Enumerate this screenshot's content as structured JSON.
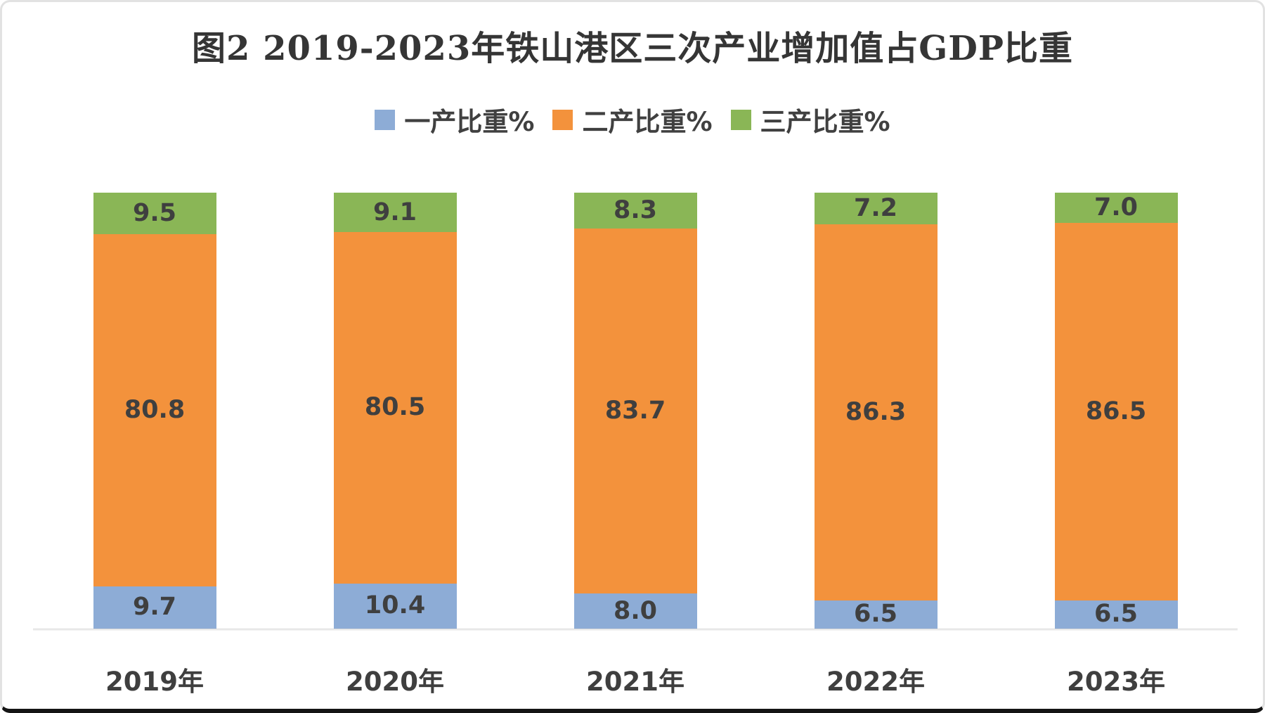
{
  "chart_data": {
    "type": "bar",
    "subtype": "stacked-column",
    "title": "图2 2019-2023年铁山港区三次产业增加值占GDP比重",
    "categories": [
      "2019年",
      "2020年",
      "2021年",
      "2022年",
      "2023年"
    ],
    "series": [
      {
        "name": "一产比重%",
        "color": "#8DACD6",
        "values": [
          9.7,
          10.4,
          8.0,
          6.5,
          6.5
        ]
      },
      {
        "name": "二产比重%",
        "color": "#F3923C",
        "values": [
          80.8,
          80.5,
          83.7,
          86.3,
          86.5
        ]
      },
      {
        "name": "三产比重%",
        "color": "#8AB656",
        "values": [
          9.5,
          9.1,
          8.3,
          7.2,
          7.0
        ]
      }
    ],
    "ylim": [
      0,
      100
    ],
    "grid": false,
    "y_axis_visible": false,
    "legend_position": "top",
    "value_labels": true,
    "value_label_format": "one-decimal",
    "value_label_color": "#3F3F3F",
    "axis_line_color": "#D8D8D8",
    "title_color": "#353535",
    "background_color": "#FFFFFF"
  }
}
